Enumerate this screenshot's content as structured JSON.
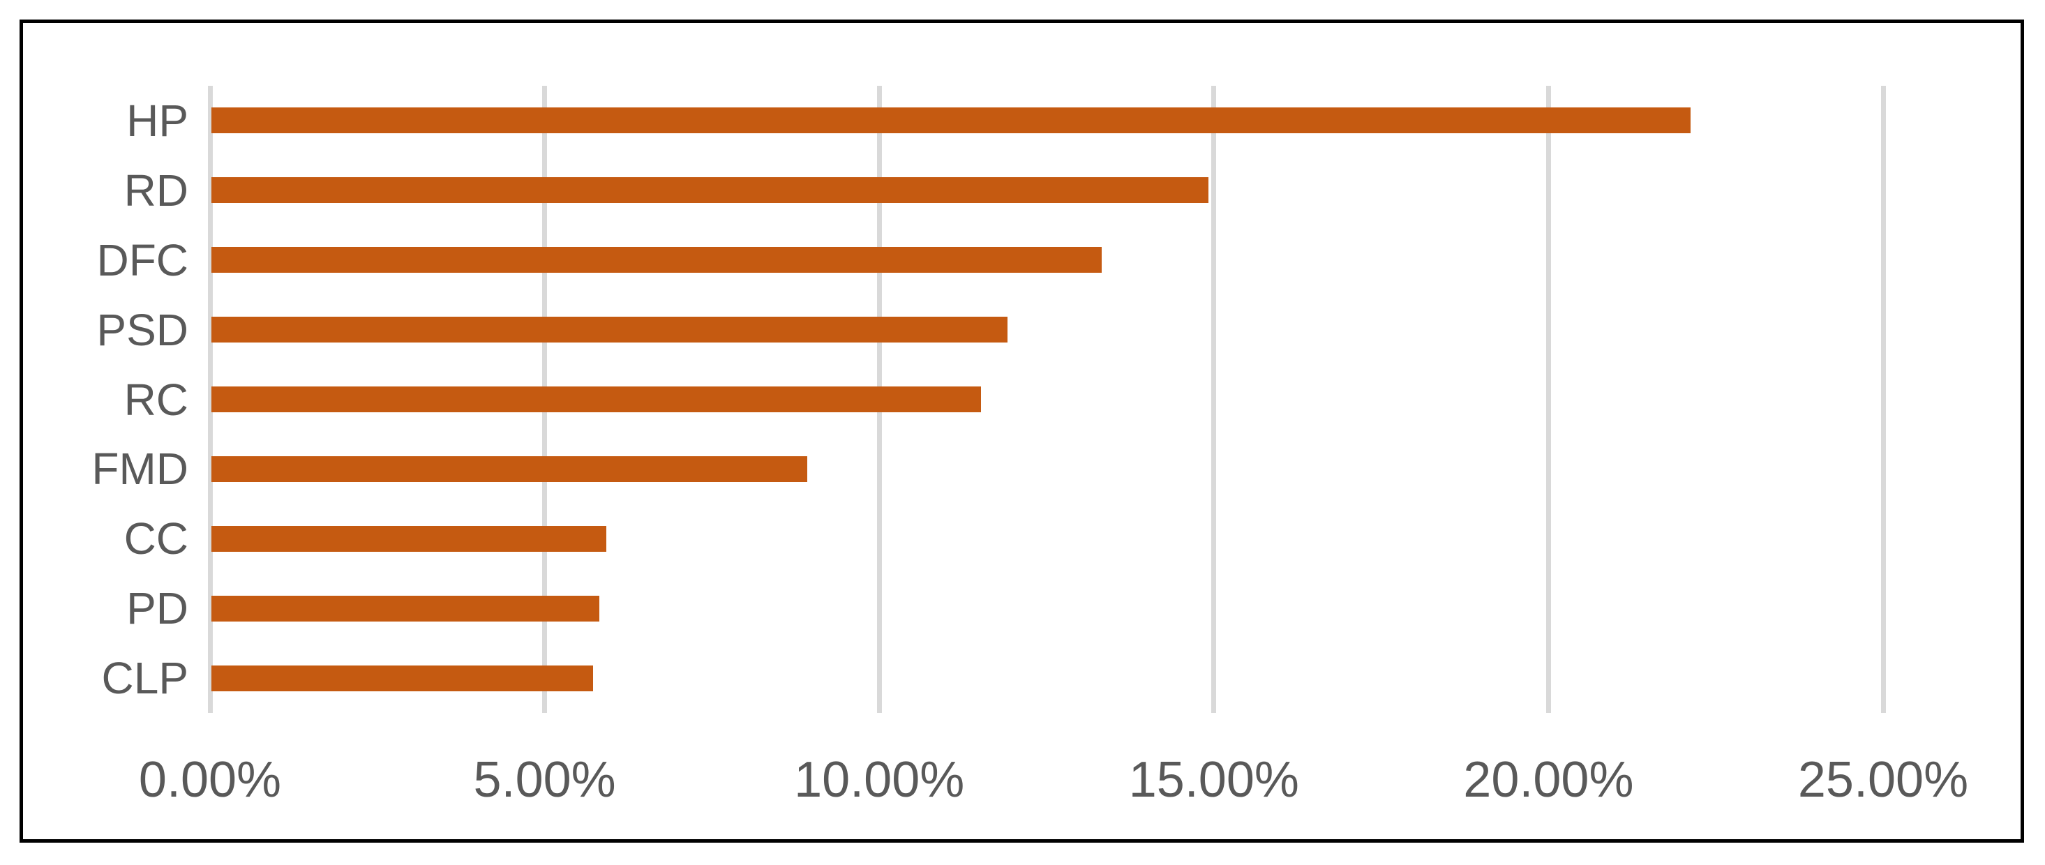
{
  "chart_data": {
    "type": "bar",
    "orientation": "horizontal",
    "title": "",
    "xlabel": "",
    "ylabel": "",
    "categories": [
      "HP",
      "RD",
      "DFC",
      "PSD",
      "RC",
      "FMD",
      "CC",
      "PD",
      "CLP"
    ],
    "values": [
      22.1,
      14.9,
      13.3,
      11.9,
      11.5,
      8.9,
      5.9,
      5.8,
      5.7
    ],
    "value_unit": "%",
    "x_axis": {
      "min": 0,
      "max": 25,
      "tick_step": 5,
      "tick_labels": [
        "0.00%",
        "5.00%",
        "10.00%",
        "15.00%",
        "20.00%",
        "25.00%"
      ]
    },
    "grid": true,
    "legend": false,
    "colors": {
      "bar": "#C55A11",
      "gridline": "#D9D9D9",
      "axis_text": "#595959",
      "category_text": "#595959",
      "frame_border": "#000000",
      "background": "#FFFFFF"
    }
  }
}
